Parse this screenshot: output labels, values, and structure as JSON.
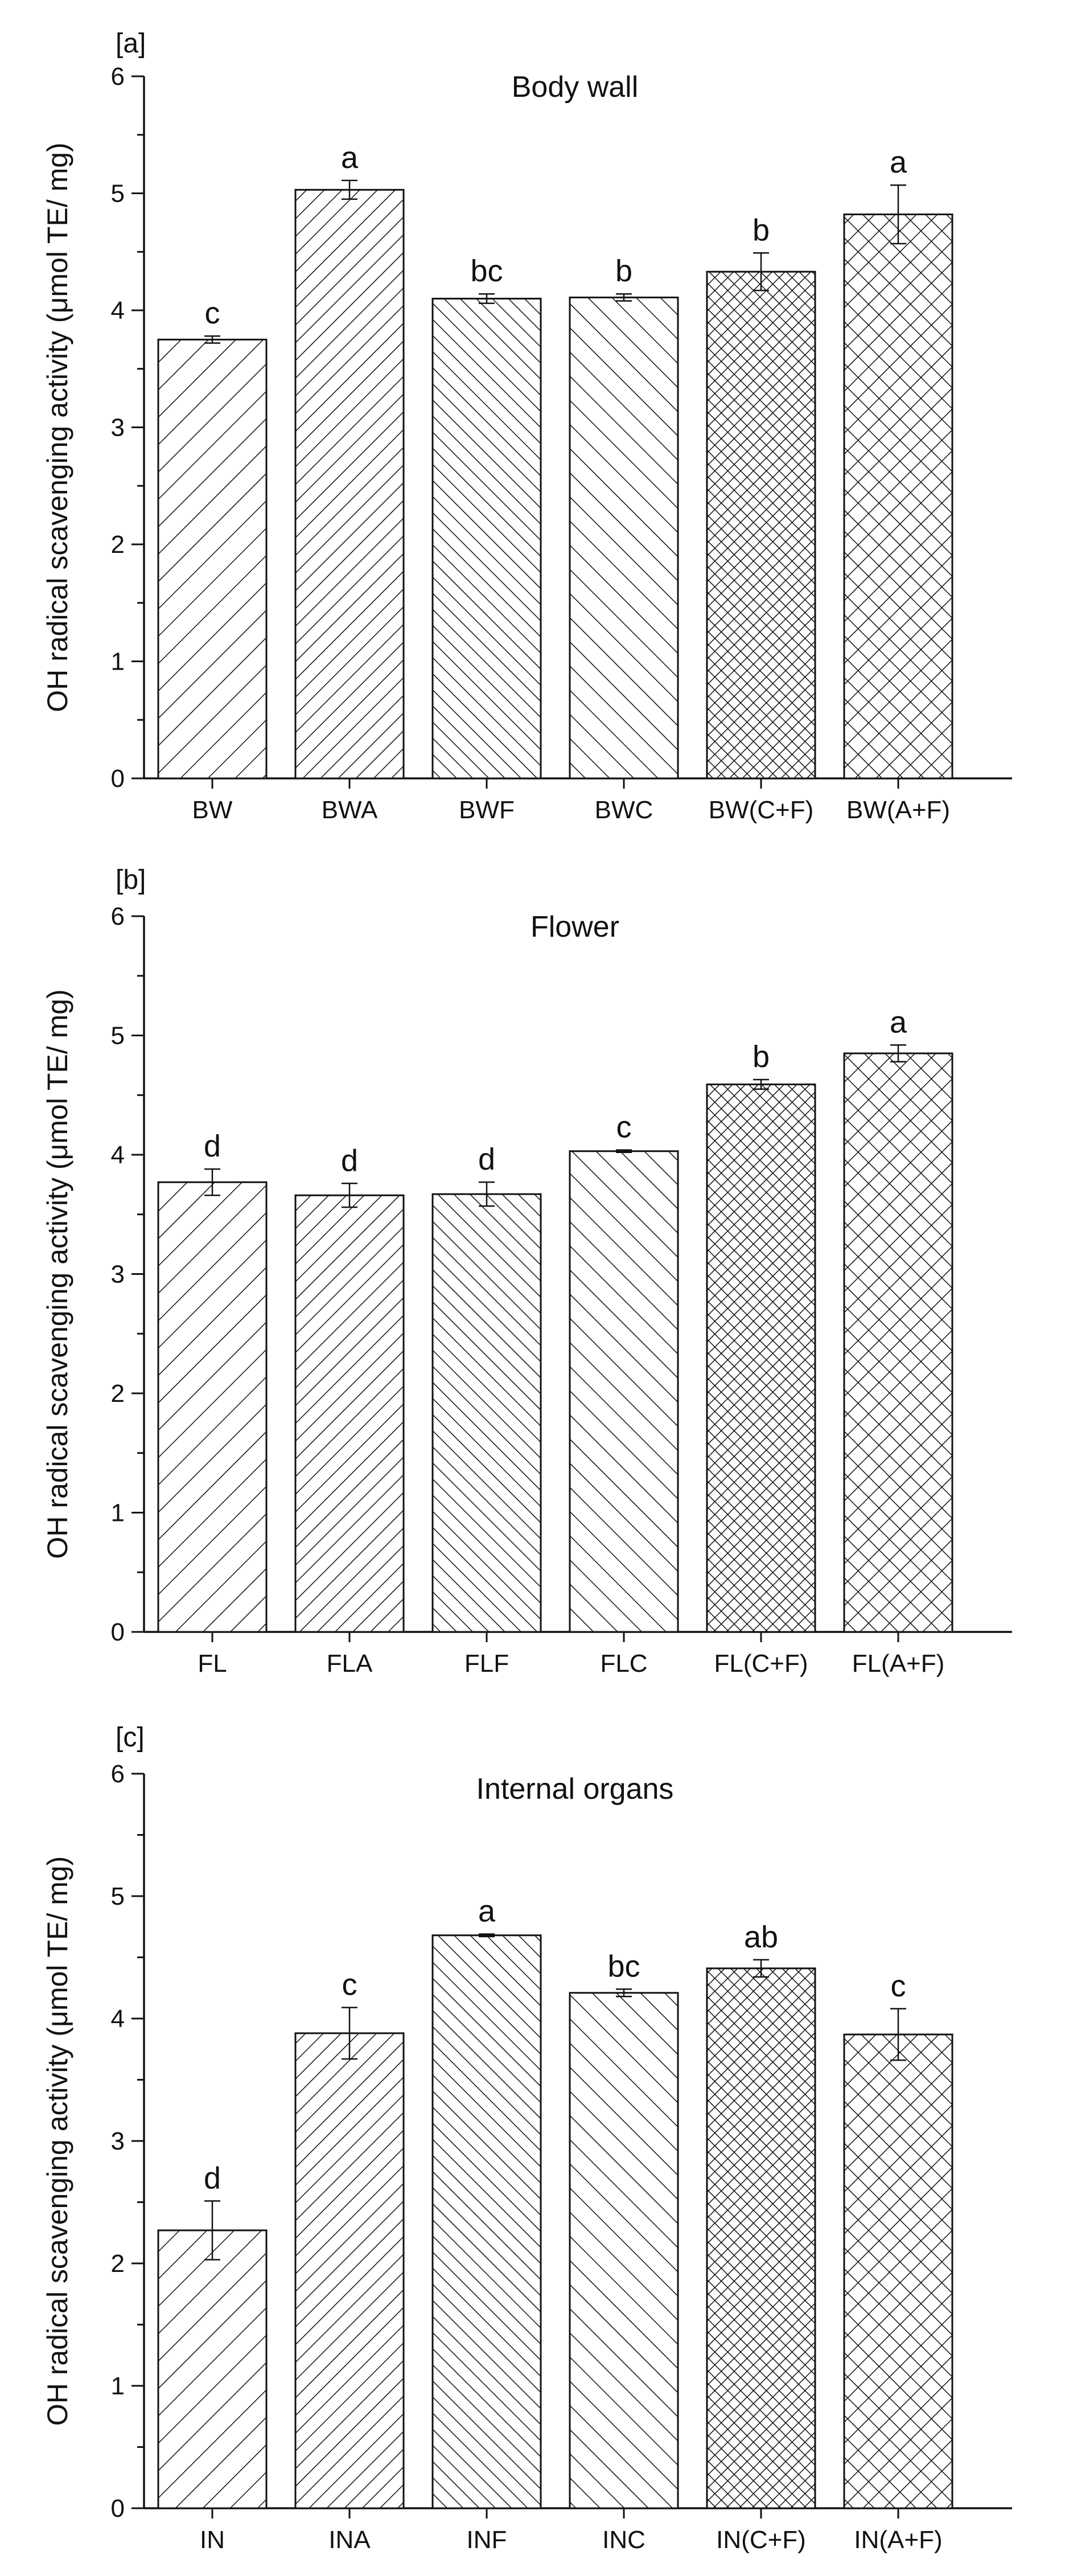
{
  "ylabel": "OH radical scavenging activity (μmol TE/ mg)",
  "chart_data": [
    {
      "type": "bar",
      "panel": "[a]",
      "title": "Body wall",
      "categories": [
        "BW",
        "BWA",
        "BWF",
        "BWC",
        "BW(C+F)",
        "BW(A+F)"
      ],
      "values": [
        3.75,
        5.03,
        4.1,
        4.11,
        4.33,
        4.82
      ],
      "errors": [
        0.03,
        0.08,
        0.04,
        0.03,
        0.16,
        0.25
      ],
      "letters": [
        "c",
        "a",
        "bc",
        "b",
        "b",
        "a"
      ],
      "patterns": [
        "fwd-sparse",
        "fwd-dense",
        "back-dense",
        "back-sparse",
        "cross-dense",
        "cross-sparse"
      ],
      "ylabel": "OH radical scavenging activity (μmol TE/ mg)",
      "ylim": [
        0,
        6
      ],
      "yticks": [
        "0",
        "1",
        "2",
        "3",
        "4",
        "5",
        "6"
      ]
    },
    {
      "type": "bar",
      "panel": "[b]",
      "title": "Flower",
      "categories": [
        "FL",
        "FLA",
        "FLF",
        "FLC",
        "FL(C+F)",
        "FL(A+F)"
      ],
      "values": [
        3.77,
        3.66,
        3.67,
        4.03,
        4.59,
        4.85
      ],
      "errors": [
        0.11,
        0.1,
        0.1,
        0.01,
        0.04,
        0.07
      ],
      "letters": [
        "d",
        "d",
        "d",
        "c",
        "b",
        "a"
      ],
      "patterns": [
        "fwd-sparse",
        "fwd-dense",
        "back-dense",
        "back-sparse",
        "cross-dense",
        "cross-sparse"
      ],
      "ylabel": "OH radical scavenging activity (μmol TE/ mg)",
      "ylim": [
        0,
        6
      ],
      "yticks": [
        "0",
        "1",
        "2",
        "3",
        "4",
        "5",
        "6"
      ]
    },
    {
      "type": "bar",
      "panel": "[c]",
      "title": "Internal organs",
      "categories": [
        "IN",
        "INA",
        "INF",
        "INC",
        "IN(C+F)",
        "IN(A+F)"
      ],
      "values": [
        2.27,
        3.88,
        4.68,
        4.21,
        4.41,
        3.87
      ],
      "errors": [
        0.24,
        0.21,
        0.01,
        0.03,
        0.07,
        0.21
      ],
      "letters": [
        "d",
        "c",
        "a",
        "bc",
        "ab",
        "c"
      ],
      "patterns": [
        "fwd-sparse",
        "fwd-dense",
        "back-dense",
        "back-sparse",
        "cross-dense",
        "cross-sparse"
      ],
      "ylabel": "OH radical scavenging activity (μmol TE/ mg)",
      "ylim": [
        0,
        6
      ],
      "yticks": [
        "0",
        "1",
        "2",
        "3",
        "4",
        "5",
        "6"
      ]
    }
  ]
}
